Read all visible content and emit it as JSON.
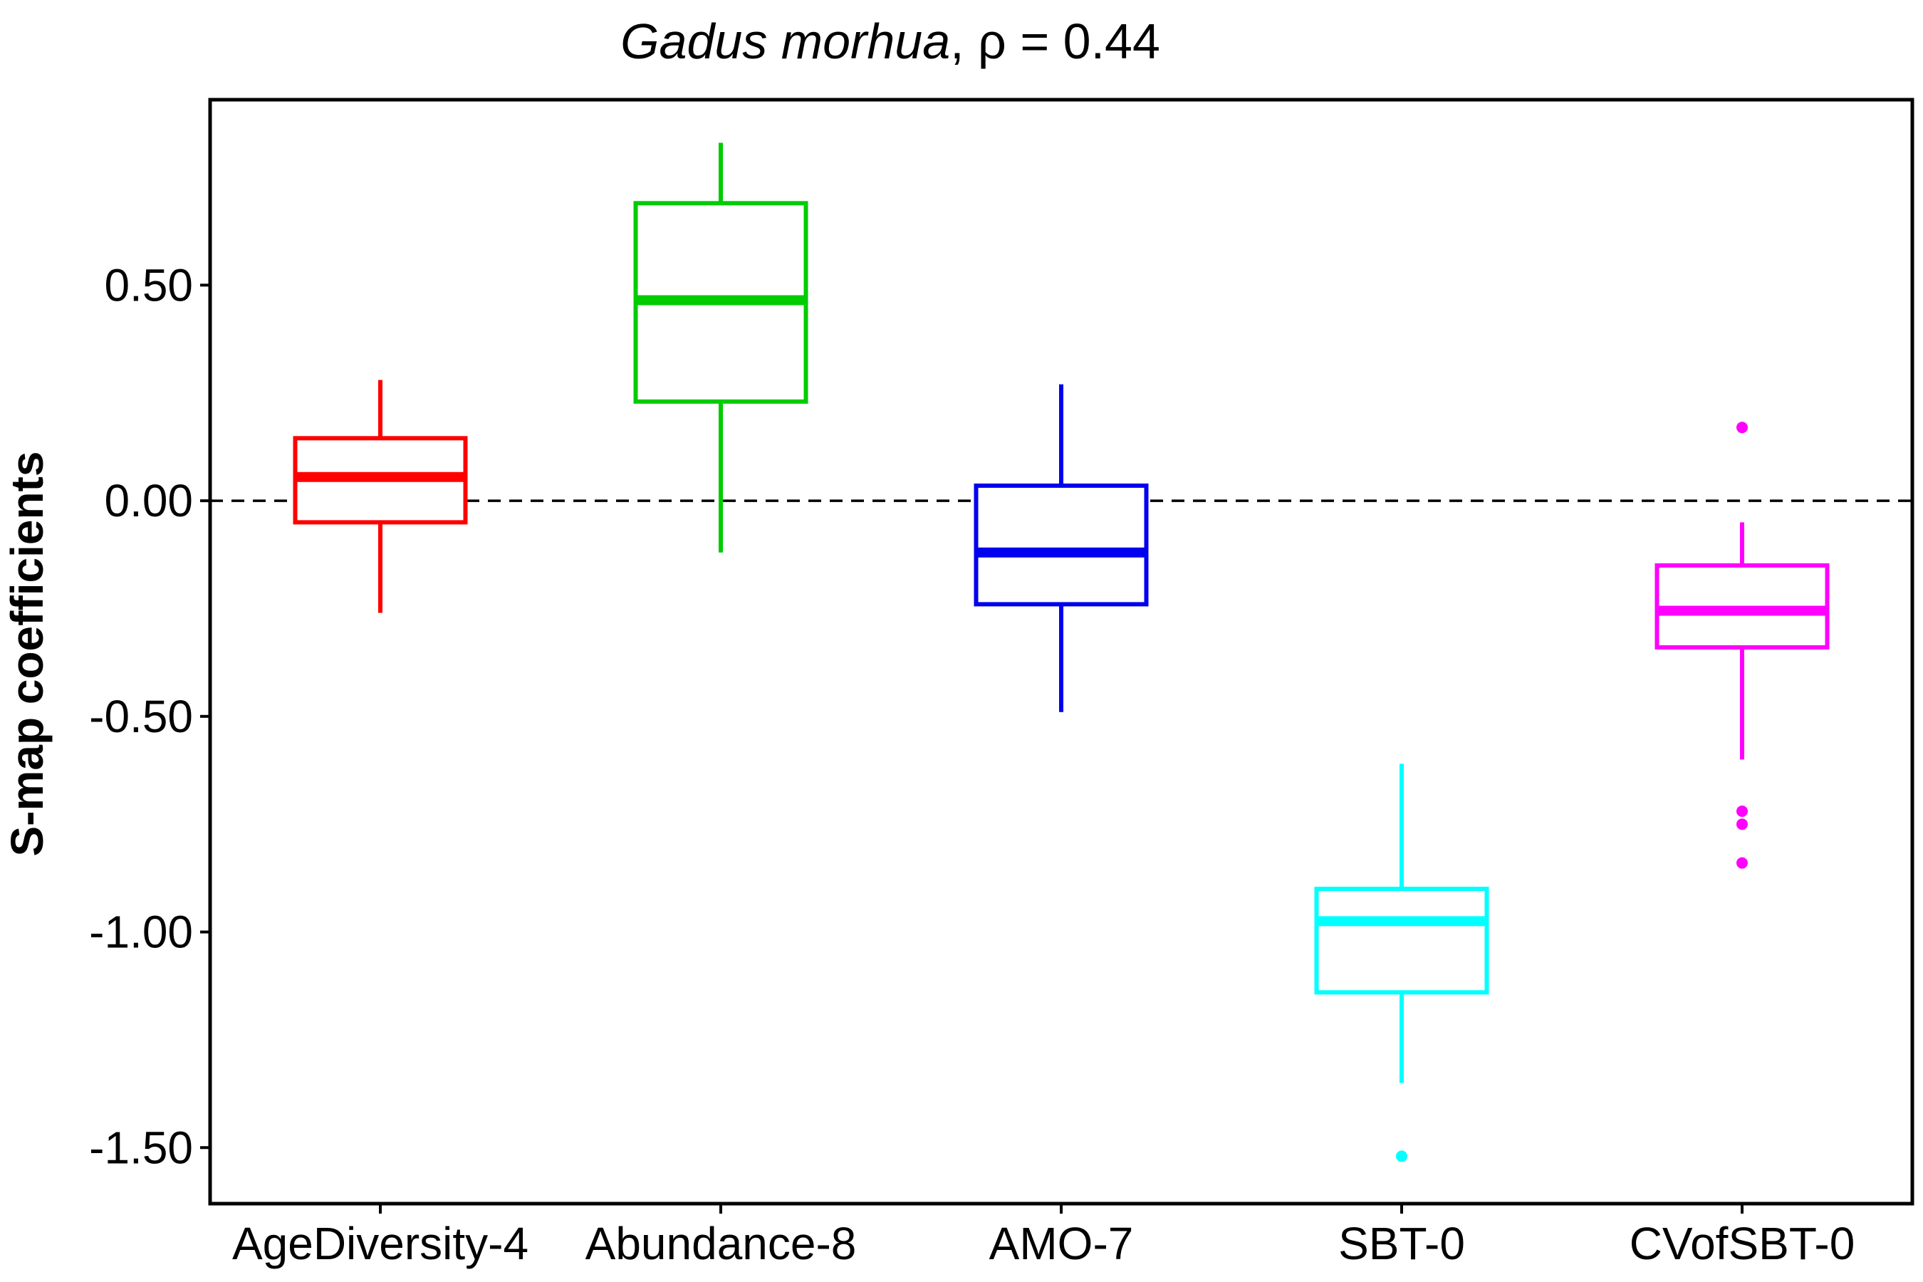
{
  "chart_data": {
    "type": "boxplot",
    "title_italic": "Gadus morhua",
    "title_rest": ", ρ = 0.44",
    "xlabel": "",
    "ylabel": "S-map coefficients",
    "ylim": [
      -1.63,
      0.93
    ],
    "yticks": [
      0.5,
      0.0,
      -0.5,
      -1.0,
      -1.5
    ],
    "ytick_labels": [
      "0.50",
      "0.00",
      "-0.50",
      "-1.00",
      "-1.50"
    ],
    "reference_line": {
      "y": 0.0,
      "style": "dashed"
    },
    "grid": false,
    "legend": "none",
    "categories": [
      "AgeDiversity-4",
      "Abundance-8",
      "AMO-7",
      "SBT-0",
      "CVofSBT-0"
    ],
    "boxes": [
      {
        "category": "AgeDiversity-4",
        "color": "#ff0000",
        "whisker_low": -0.26,
        "q1": -0.05,
        "median": 0.055,
        "q3": 0.145,
        "whisker_high": 0.28,
        "outliers": []
      },
      {
        "category": "Abundance-8",
        "color": "#00cc00",
        "whisker_low": -0.12,
        "q1": 0.23,
        "median": 0.465,
        "q3": 0.69,
        "whisker_high": 0.83,
        "outliers": []
      },
      {
        "category": "AMO-7",
        "color": "#0000ee",
        "whisker_low": -0.49,
        "q1": -0.24,
        "median": -0.12,
        "q3": 0.035,
        "whisker_high": 0.27,
        "outliers": []
      },
      {
        "category": "SBT-0",
        "color": "#00ffff",
        "whisker_low": -1.35,
        "q1": -1.14,
        "median": -0.975,
        "q3": -0.9,
        "whisker_high": -0.61,
        "outliers": [
          -1.52
        ]
      },
      {
        "category": "CVofSBT-0",
        "color": "#ff00ff",
        "whisker_low": -0.6,
        "q1": -0.34,
        "median": -0.255,
        "q3": -0.15,
        "whisker_high": -0.05,
        "outliers": [
          0.17,
          -0.72,
          -0.75,
          -0.84
        ]
      }
    ]
  }
}
